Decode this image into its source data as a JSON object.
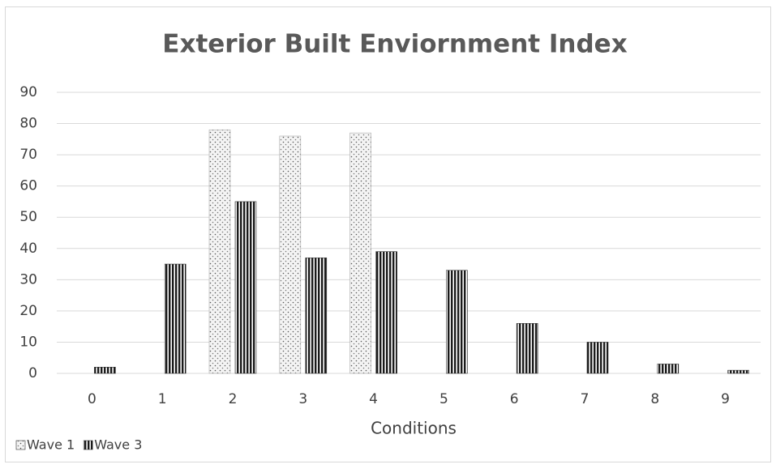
{
  "chart_data": {
    "type": "bar",
    "title": "Exterior Built Enviornment Index",
    "x_label": "Conditions",
    "categories": [
      "0",
      "1",
      "2",
      "3",
      "4",
      "5",
      "6",
      "7",
      "8",
      "9"
    ],
    "series": [
      {
        "name": "Wave 1",
        "color": "#cfcfcf",
        "pattern": "dots",
        "values": [
          0,
          0,
          78,
          76,
          77,
          0,
          0,
          0,
          0,
          0
        ]
      },
      {
        "name": "Wave 3",
        "color": "#1a1a1a",
        "pattern": "stripes",
        "values": [
          2,
          35,
          55,
          37,
          39,
          33,
          16,
          10,
          3,
          1
        ]
      }
    ],
    "ylim": [
      0,
      90
    ],
    "yticks": [
      0,
      10,
      20,
      30,
      40,
      50,
      60,
      70,
      80,
      90
    ],
    "grid": true,
    "legend": "bottom-left"
  }
}
